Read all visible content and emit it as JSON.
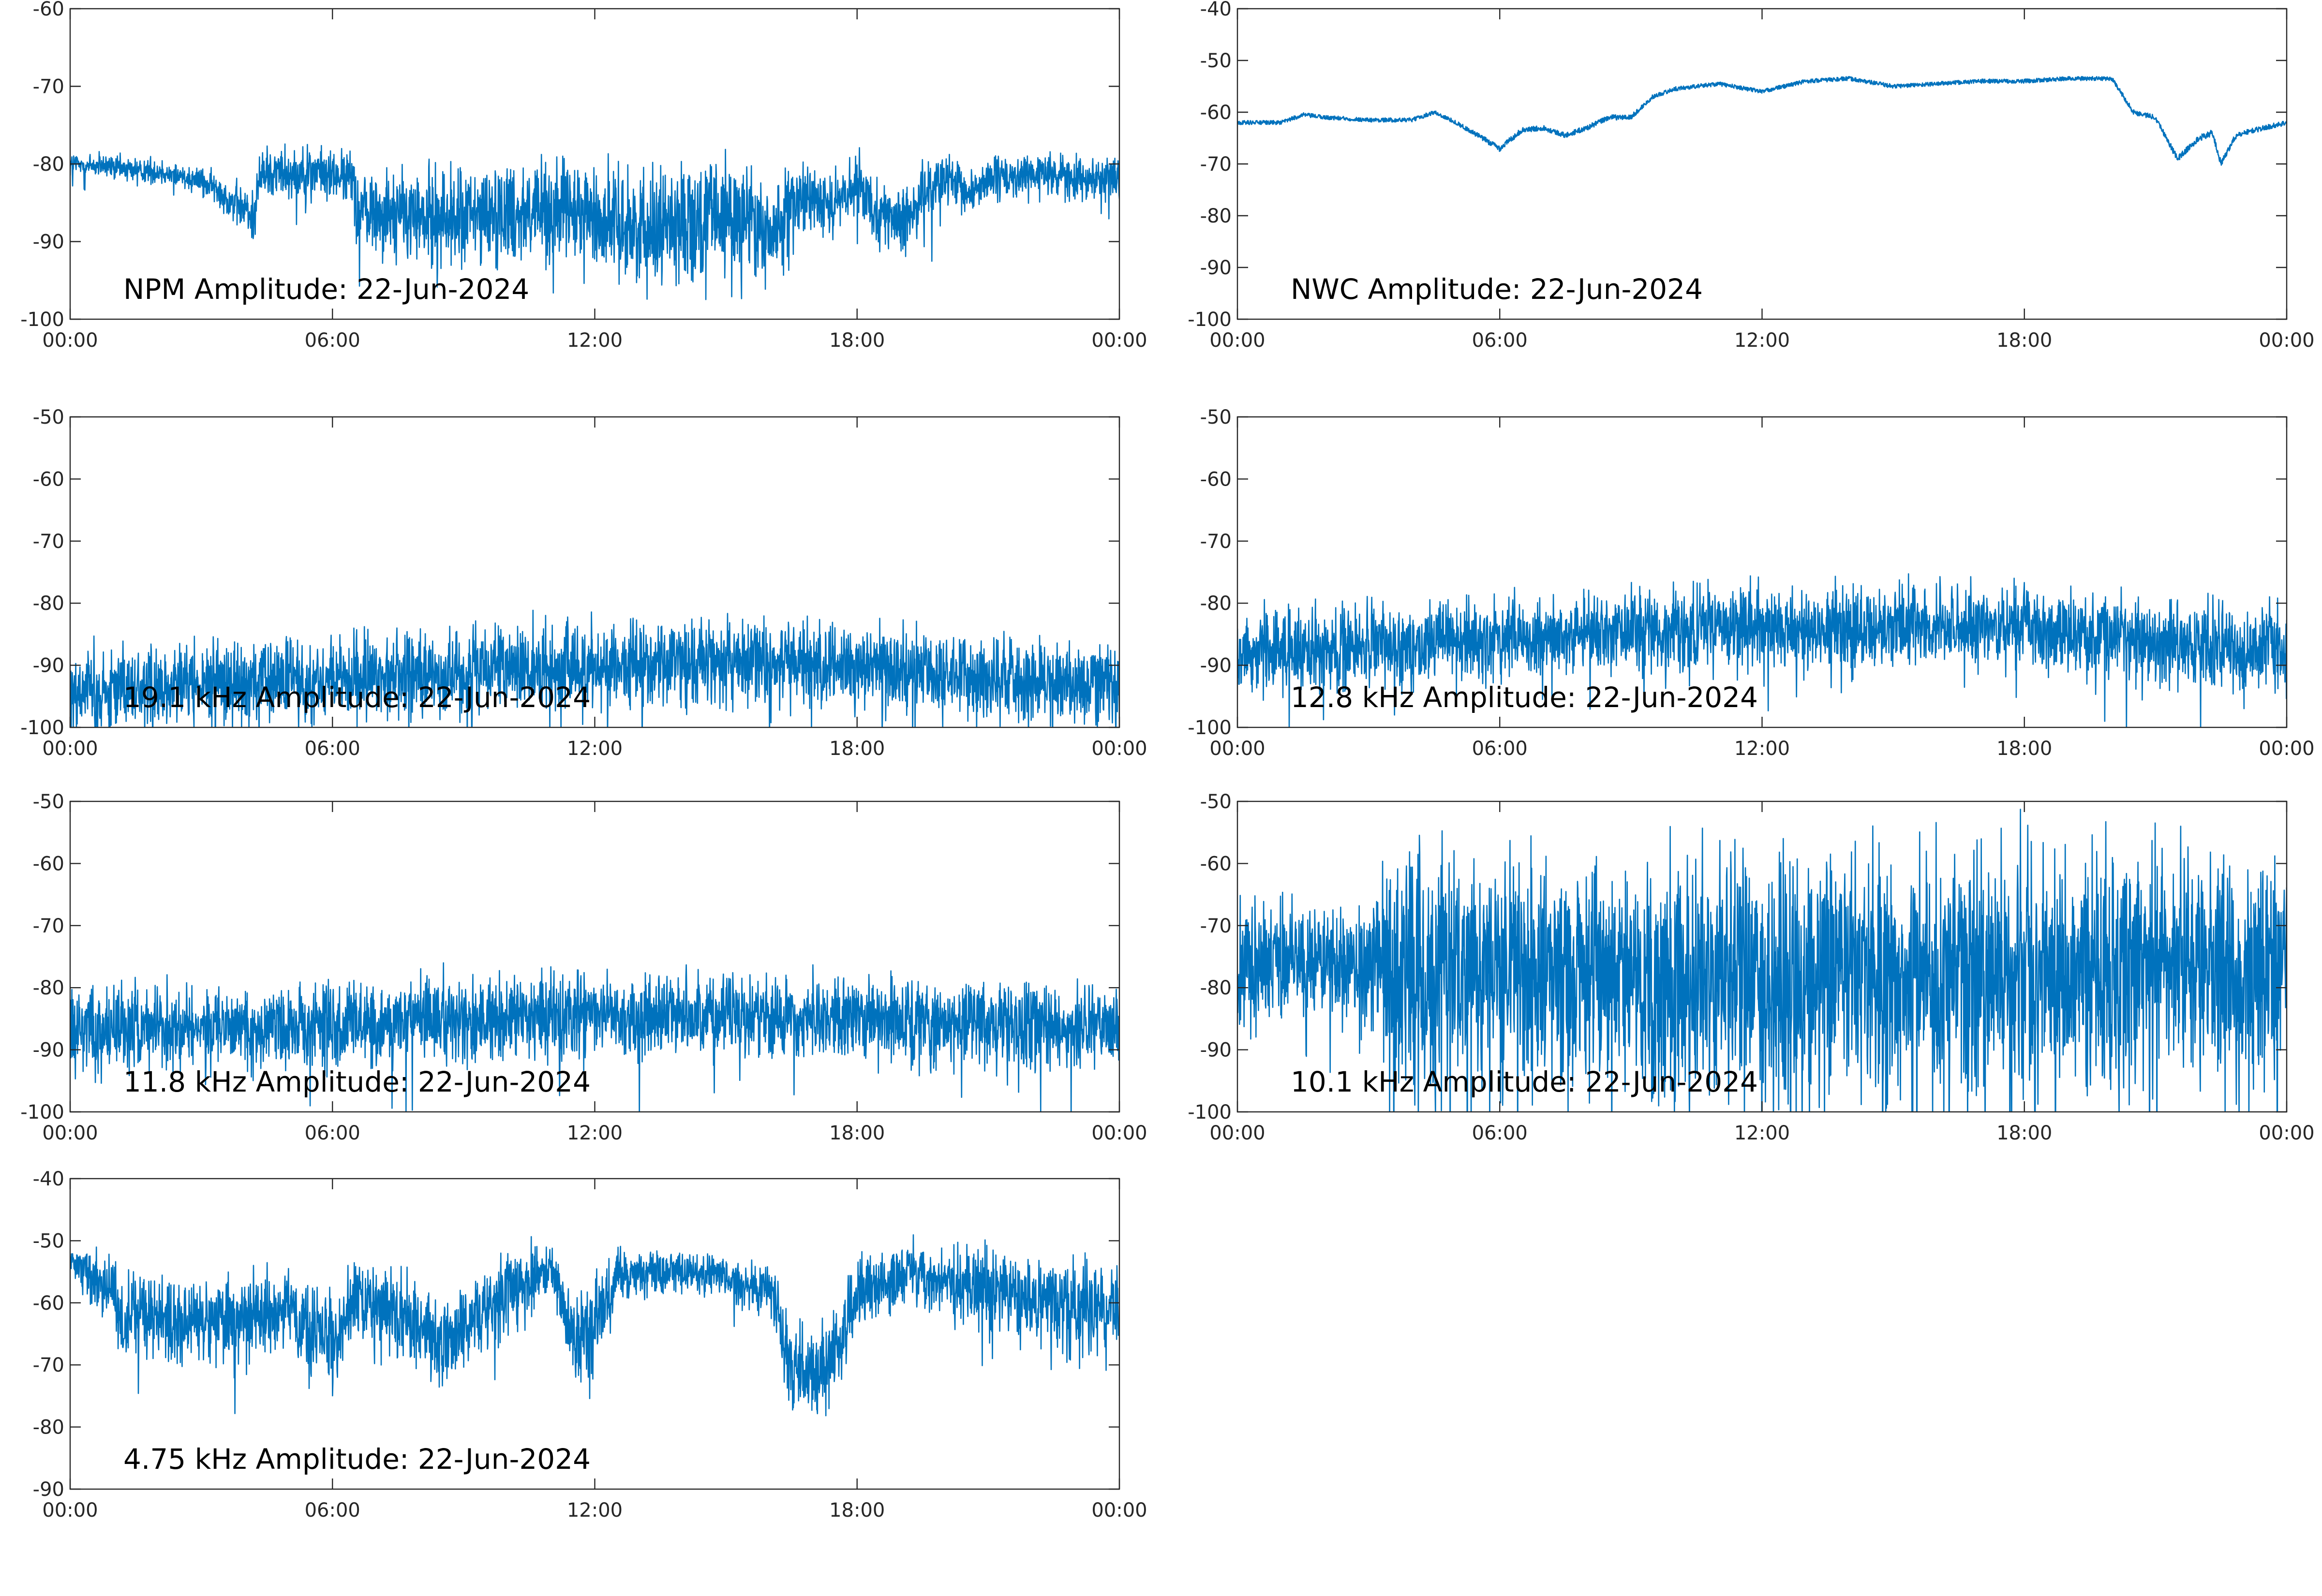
{
  "figure": {
    "series_color": "#0072BD",
    "axis_color": "#262626"
  },
  "chart_data": [
    {
      "type": "line",
      "title": "NPM Amplitude: 22-Jun-2024",
      "xlabel": "",
      "ylabel": "",
      "xlim": [
        "00:00",
        "24:00"
      ],
      "ylim": [
        -100,
        -60
      ],
      "xticks": [
        "00:00",
        "06:00",
        "12:00",
        "18:00",
        "00:00"
      ],
      "yticks": [
        -60,
        -70,
        -80,
        -90,
        -100
      ],
      "grid": false,
      "series": [
        {
          "x_hours": [
            0,
            1,
            2,
            3,
            3.5,
            4,
            4.2,
            4.3,
            4.5,
            5,
            5.5,
            6,
            6.5,
            6.6,
            6.7,
            7,
            8,
            9,
            10,
            11,
            12,
            13,
            14,
            15,
            15.5,
            15.6,
            15.7,
            16,
            16.5,
            17,
            17.5,
            18,
            18.5,
            19,
            19.5,
            20,
            20.5,
            21,
            22,
            23,
            24
          ],
          "center": [
            -80,
            -80.5,
            -81,
            -82,
            -84,
            -86,
            -87,
            -82,
            -81,
            -81,
            -81,
            -81.5,
            -82,
            -86,
            -86,
            -86,
            -87,
            -87,
            -86,
            -86,
            -87,
            -88,
            -87.5,
            -87,
            -86.5,
            -87,
            -89,
            -89,
            -86,
            -84,
            -85,
            -83,
            -86,
            -88,
            -84,
            -82,
            -84,
            -82,
            -81.5,
            -81.5,
            -82
          ],
          "spread": [
            3,
            3,
            3,
            3,
            4,
            6,
            6,
            6,
            6,
            6,
            6,
            6,
            6,
            9,
            9,
            10,
            11,
            12,
            12,
            12,
            12,
            13,
            13,
            14,
            14,
            14,
            13,
            11,
            9,
            8,
            7,
            7,
            7,
            7,
            7,
            6,
            6,
            5,
            5,
            5,
            5
          ]
        }
      ]
    },
    {
      "type": "line",
      "title": "NWC Amplitude: 22-Jun-2024",
      "xlabel": "",
      "ylabel": "",
      "xlim": [
        "00:00",
        "24:00"
      ],
      "ylim": [
        -100,
        -40
      ],
      "xticks": [
        "00:00",
        "06:00",
        "12:00",
        "18:00",
        "00:00"
      ],
      "yticks": [
        -40,
        -50,
        -60,
        -70,
        -80,
        -90,
        -100
      ],
      "grid": false,
      "series": [
        {
          "x_hours": [
            0,
            1,
            1.5,
            2,
            3,
            4,
            4.5,
            5,
            5.5,
            6,
            6.5,
            7,
            7.5,
            8,
            8.5,
            9,
            9.5,
            10,
            11,
            12,
            13,
            14,
            15,
            16,
            17,
            18,
            19,
            20,
            20.5,
            21,
            21.5,
            22,
            22.3,
            22.5,
            22.8,
            23,
            23.5,
            24
          ],
          "center": [
            -62,
            -62,
            -60.5,
            -61,
            -61.5,
            -61.5,
            -60,
            -62,
            -64.5,
            -67,
            -63.5,
            -63,
            -64.5,
            -63,
            -61,
            -61,
            -57,
            -55.5,
            -54.5,
            -56,
            -54,
            -53.5,
            -55,
            -54.5,
            -54,
            -54,
            -53.5,
            -53.5,
            -60,
            -61,
            -69,
            -65,
            -64,
            -70,
            -65,
            -64,
            -63,
            -62
          ],
          "spread": [
            0.8,
            0.8,
            0.8,
            0.8,
            0.8,
            0.8,
            0.8,
            0.8,
            1,
            1.2,
            1,
            1,
            1,
            1,
            1,
            1,
            0.8,
            0.8,
            0.8,
            0.8,
            0.8,
            0.8,
            0.8,
            0.8,
            0.8,
            0.8,
            0.8,
            0.8,
            1,
            1,
            1.2,
            1.2,
            1.2,
            1.2,
            1.2,
            1,
            1,
            1
          ]
        }
      ]
    },
    {
      "type": "line",
      "title": "19.1 kHz Amplitude: 22-Jun-2024",
      "xlabel": "",
      "ylabel": "",
      "xlim": [
        "00:00",
        "24:00"
      ],
      "ylim": [
        -100,
        -50
      ],
      "xticks": [
        "00:00",
        "06:00",
        "12:00",
        "18:00",
        "00:00"
      ],
      "yticks": [
        -50,
        -60,
        -70,
        -80,
        -90,
        -100
      ],
      "grid": false,
      "series": [
        {
          "x_hours": [
            0,
            3,
            6,
            9,
            12,
            15,
            18,
            21,
            24
          ],
          "center": [
            -94,
            -93,
            -92,
            -91,
            -90,
            -89.5,
            -90,
            -92,
            -93
          ],
          "spread": [
            12,
            12,
            12,
            12,
            12,
            12,
            12,
            12,
            12
          ]
        }
      ]
    },
    {
      "type": "line",
      "title": "12.8 kHz Amplitude: 22-Jun-2024",
      "xlabel": "",
      "ylabel": "",
      "xlim": [
        "00:00",
        "24:00"
      ],
      "ylim": [
        -100,
        -50
      ],
      "xticks": [
        "00:00",
        "06:00",
        "12:00",
        "18:00",
        "00:00"
      ],
      "yticks": [
        -50,
        -60,
        -70,
        -80,
        -90,
        -100
      ],
      "grid": false,
      "series": [
        {
          "x_hours": [
            0,
            3,
            6,
            9,
            12,
            15,
            18,
            21,
            24
          ],
          "center": [
            -88,
            -87,
            -86,
            -84.5,
            -84,
            -83.5,
            -84,
            -86,
            -88
          ],
          "spread": [
            12,
            12,
            12,
            12,
            12,
            12,
            12,
            12,
            12
          ]
        }
      ]
    },
    {
      "type": "line",
      "title": "11.8 kHz Amplitude: 22-Jun-2024",
      "xlabel": "",
      "ylabel": "",
      "xlim": [
        "00:00",
        "24:00"
      ],
      "ylim": [
        -100,
        -50
      ],
      "xticks": [
        "00:00",
        "06:00",
        "12:00",
        "18:00",
        "00:00"
      ],
      "yticks": [
        -50,
        -60,
        -70,
        -80,
        -90,
        -100
      ],
      "grid": false,
      "series": [
        {
          "x_hours": [
            0,
            3,
            6,
            9,
            12,
            15,
            18,
            21,
            24
          ],
          "center": [
            -86.5,
            -86.5,
            -86,
            -85,
            -84.5,
            -84.5,
            -85,
            -86,
            -86.5
          ],
          "spread": [
            12,
            12,
            12,
            12,
            12,
            12,
            12,
            12,
            12
          ]
        }
      ]
    },
    {
      "type": "line",
      "title": "10.1 kHz Amplitude: 22-Jun-2024",
      "xlabel": "",
      "ylabel": "",
      "xlim": [
        "00:00",
        "24:00"
      ],
      "ylim": [
        -100,
        -50
      ],
      "xticks": [
        "00:00",
        "06:00",
        "12:00",
        "18:00",
        "00:00"
      ],
      "yticks": [
        -50,
        -60,
        -70,
        -80,
        -90,
        -100
      ],
      "grid": false,
      "series": [
        {
          "x_hours": [
            0,
            1,
            3,
            3.5,
            4,
            6,
            12,
            18,
            24
          ],
          "center": [
            -76,
            -76,
            -76,
            -78,
            -78,
            -78,
            -78,
            -78,
            -76
          ],
          "spread": [
            18,
            18,
            18,
            36,
            36,
            36,
            36,
            36,
            30
          ]
        }
      ]
    },
    {
      "type": "line",
      "title": "4.75 kHz Amplitude: 22-Jun-2024",
      "xlabel": "",
      "ylabel": "",
      "xlim": [
        "00:00",
        "24:00"
      ],
      "ylim": [
        -90,
        -40
      ],
      "xticks": [
        "00:00",
        "06:00",
        "12:00",
        "18:00",
        "00:00"
      ],
      "yticks": [
        -40,
        -50,
        -60,
        -70,
        -80,
        -90
      ],
      "grid": false,
      "series": [
        {
          "x_hours": [
            0,
            0.5,
            1,
            1.2,
            1.5,
            2,
            3,
            4,
            5,
            6,
            6.5,
            7,
            8,
            8.5,
            9,
            10,
            10.5,
            11,
            11.5,
            12,
            12.5,
            13,
            14,
            15,
            16,
            16.5,
            17,
            17.5,
            18,
            18.5,
            19,
            20,
            21,
            22,
            23,
            24
          ],
          "center": [
            -53,
            -56,
            -58,
            -64,
            -62,
            -63,
            -63,
            -62,
            -61,
            -67,
            -60,
            -60,
            -64,
            -66,
            -64,
            -58,
            -56,
            -54,
            -66,
            -64,
            -56,
            -55,
            -55,
            -56,
            -58,
            -70,
            -72,
            -68,
            -58,
            -57,
            -55,
            -57,
            -57,
            -60,
            -60,
            -62
          ],
          "spread": [
            4,
            8,
            9,
            12,
            12,
            12,
            12,
            12,
            12,
            14,
            12,
            12,
            12,
            12,
            12,
            12,
            10,
            6,
            14,
            14,
            8,
            6,
            6,
            6,
            8,
            14,
            14,
            14,
            10,
            10,
            8,
            10,
            12,
            12,
            14,
            14
          ]
        }
      ]
    }
  ]
}
